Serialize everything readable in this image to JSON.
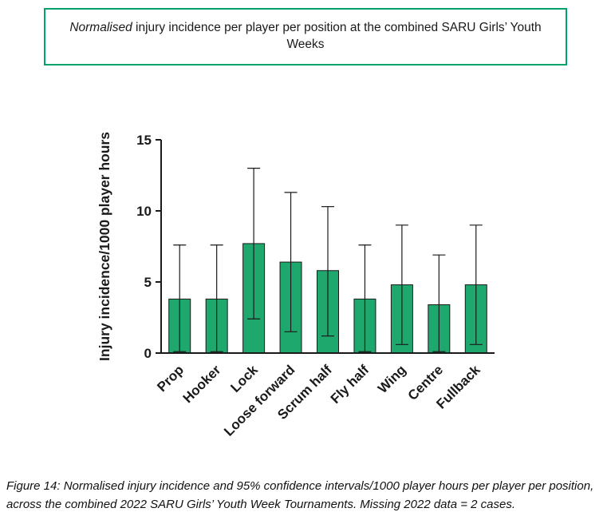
{
  "title_box": {
    "italic_part": "Normalised",
    "rest": " injury incidence per player per position at the combined SARU Girls’ Youth Weeks",
    "border_color": "#00A36C"
  },
  "chart_data": {
    "type": "bar",
    "title": "",
    "xlabel": "",
    "ylabel": "Injury incidence/1000 player hours",
    "ylim": [
      0,
      15
    ],
    "yticks": [
      0,
      5,
      10,
      15
    ],
    "grid": false,
    "legend": "none",
    "bar_color": "#1FA86D",
    "bar_border_color": "#1a1a1a",
    "error_color": "#1a1a1a",
    "categories": [
      "Prop",
      "Hooker",
      "Lock",
      "Loose forward",
      "Scrum half",
      "Fly half",
      "Wing",
      "Centre",
      "Fullback"
    ],
    "values": [
      3.8,
      3.8,
      7.7,
      6.4,
      5.8,
      3.8,
      4.8,
      3.4,
      4.8
    ],
    "ci_lower": [
      0.1,
      0.1,
      2.4,
      1.5,
      1.2,
      0.1,
      0.6,
      0.1,
      0.6
    ],
    "ci_upper": [
      7.6,
      7.6,
      13.0,
      11.3,
      10.3,
      7.6,
      9.0,
      6.9,
      9.0
    ]
  },
  "caption": {
    "text": "Figure 14: Normalised injury incidence and 95% confidence intervals/1000 player hours per player per position, across the combined 2022 SARU Girls’ Youth Week Tournaments. Missing 2022 data = 2 cases."
  }
}
